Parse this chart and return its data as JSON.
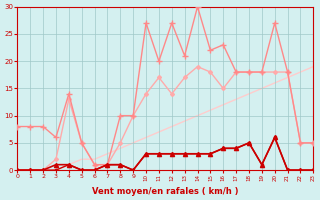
{
  "xlabel": "Vent moyen/en rafales ( km/h )",
  "bg_color": "#d4f0f0",
  "grid_color": "#a0c8c8",
  "x_ticks": [
    0,
    1,
    2,
    3,
    4,
    5,
    6,
    7,
    8,
    9,
    10,
    11,
    12,
    13,
    14,
    15,
    16,
    17,
    18,
    19,
    20,
    21,
    22,
    23
  ],
  "ylim": [
    0,
    30
  ],
  "xlim": [
    0,
    23
  ],
  "yticks": [
    0,
    5,
    10,
    15,
    20,
    25,
    30
  ],
  "series": [
    {
      "x": [
        0,
        1,
        2,
        3,
        4,
        5,
        6,
        7,
        8,
        9,
        10,
        11,
        12,
        13,
        14,
        15,
        16,
        17,
        18,
        19,
        20,
        21,
        22,
        23
      ],
      "y": [
        0,
        0,
        0,
        0,
        1,
        2,
        2,
        3,
        4,
        5,
        6,
        7,
        8,
        9,
        10,
        11,
        12,
        13,
        14,
        15,
        16,
        17,
        18,
        19
      ],
      "color": "#ffcccc",
      "lw": 1.0,
      "marker": null,
      "ms": 0,
      "zorder": 1
    },
    {
      "x": [
        0,
        1,
        2,
        3,
        4,
        5,
        6,
        7,
        8,
        9,
        10,
        11,
        12,
        13,
        14,
        15,
        16,
        17,
        18,
        19,
        20,
        21,
        22,
        23
      ],
      "y": [
        0,
        0,
        0,
        2,
        13,
        5,
        1,
        1,
        5,
        10,
        14,
        17,
        14,
        17,
        19,
        18,
        15,
        18,
        18,
        18,
        18,
        18,
        5,
        5
      ],
      "color": "#ffaaaa",
      "lw": 1.0,
      "marker": "D",
      "ms": 2.0,
      "zorder": 2
    },
    {
      "x": [
        0,
        1,
        2,
        3,
        4,
        5,
        6,
        7,
        8,
        9,
        10,
        11,
        12,
        13,
        14,
        15,
        16,
        17,
        18,
        19,
        20,
        21,
        22,
        23
      ],
      "y": [
        8,
        8,
        8,
        6,
        14,
        5,
        1,
        1,
        10,
        10,
        27,
        20,
        27,
        21,
        30,
        22,
        23,
        18,
        18,
        18,
        27,
        18,
        5,
        5
      ],
      "color": "#ff8888",
      "lw": 1.0,
      "marker": "+",
      "ms": 4,
      "zorder": 3
    },
    {
      "x": [
        0,
        1,
        2,
        3,
        4,
        5,
        6,
        7,
        8,
        9,
        10,
        11,
        12,
        13,
        14,
        15,
        16,
        17,
        18,
        19,
        20,
        21,
        22,
        23
      ],
      "y": [
        0,
        0,
        0,
        1,
        1,
        0,
        0,
        1,
        1,
        0,
        3,
        3,
        3,
        3,
        3,
        3,
        4,
        4,
        5,
        1,
        6,
        0,
        0,
        0
      ],
      "color": "#cc0000",
      "lw": 1.2,
      "marker": "^",
      "ms": 3.0,
      "zorder": 4
    },
    {
      "x": [
        0,
        1,
        2,
        3,
        4,
        5,
        6,
        7,
        8,
        9,
        10,
        11,
        12,
        13,
        14,
        15,
        16,
        17,
        18,
        19,
        20,
        21,
        22,
        23
      ],
      "y": [
        0,
        0,
        0,
        0,
        1,
        0,
        0,
        1,
        1,
        0,
        3,
        3,
        3,
        3,
        3,
        3,
        4,
        4,
        5,
        1,
        6,
        0,
        0,
        0
      ],
      "color": "#cc0000",
      "lw": 1.0,
      "marker": "s",
      "ms": 2.0,
      "zorder": 5
    }
  ]
}
